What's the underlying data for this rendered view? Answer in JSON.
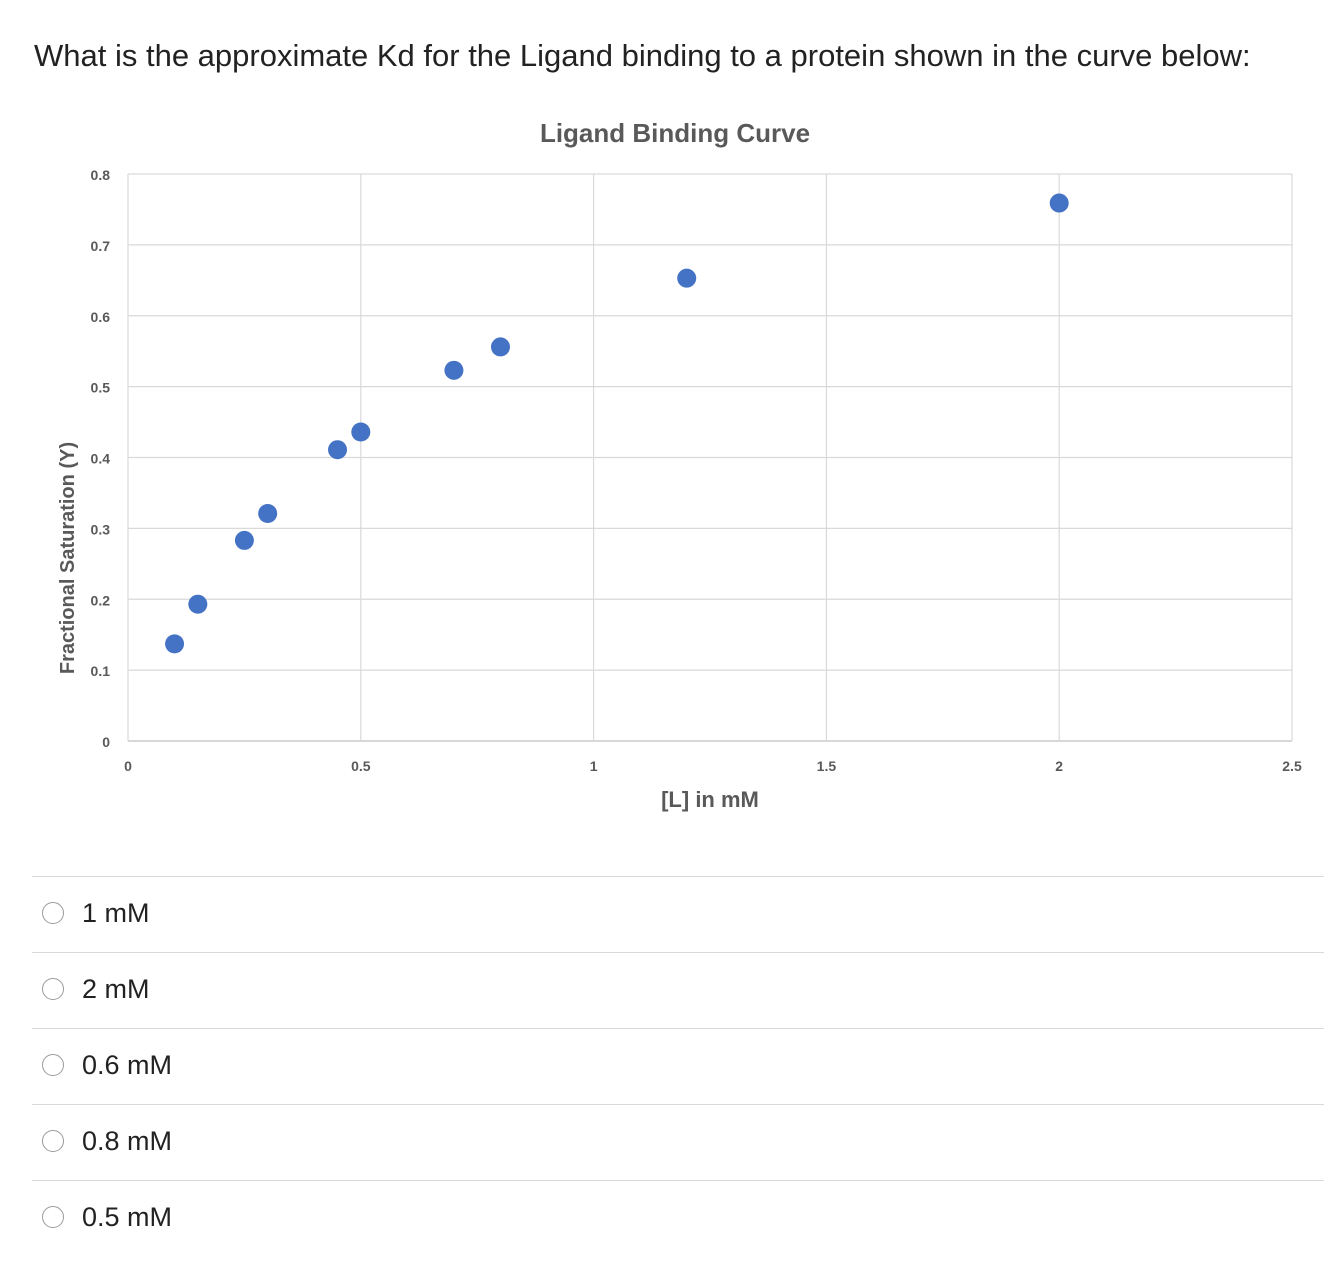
{
  "question": "What is the approximate Kd for the Ligand binding to a protein shown in the curve below:",
  "chart_data": {
    "type": "scatter",
    "title": "Ligand Binding Curve",
    "xlabel": "[L] in mM",
    "ylabel": "Fractional Saturation (Y)",
    "xlim": [
      0,
      2.5
    ],
    "ylim": [
      0,
      0.8
    ],
    "xticks": [
      "0",
      "0.5",
      "1",
      "1.5",
      "2",
      "2.5"
    ],
    "yticks": [
      "0",
      "0.1",
      "0.2",
      "0.3",
      "0.4",
      "0.5",
      "0.6",
      "0.7",
      "0.8"
    ],
    "grid": true,
    "marker_color": "#4472c4",
    "points": [
      {
        "x": 0.1,
        "y": 0.137
      },
      {
        "x": 0.15,
        "y": 0.193
      },
      {
        "x": 0.25,
        "y": 0.283
      },
      {
        "x": 0.3,
        "y": 0.321
      },
      {
        "x": 0.45,
        "y": 0.411
      },
      {
        "x": 0.5,
        "y": 0.436
      },
      {
        "x": 0.7,
        "y": 0.523
      },
      {
        "x": 0.8,
        "y": 0.556
      },
      {
        "x": 1.2,
        "y": 0.653
      },
      {
        "x": 2.0,
        "y": 0.759
      }
    ]
  },
  "options": [
    {
      "label": "1 mM"
    },
    {
      "label": "2 mM"
    },
    {
      "label": "0.6 mM"
    },
    {
      "label": "0.8 mM"
    },
    {
      "label": "0.5 mM"
    }
  ]
}
